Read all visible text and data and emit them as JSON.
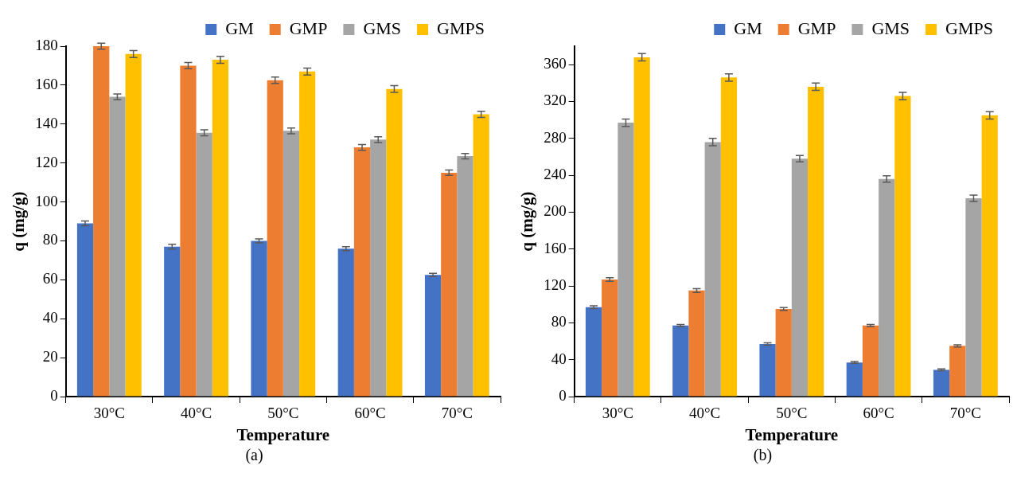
{
  "chart_data": [
    {
      "type": "bar",
      "xlabel": "Temperature",
      "ylabel": "q (mg/g)",
      "categories": [
        "30°C",
        "40°C",
        "50°C",
        "60°C",
        "70°C"
      ],
      "ylim": [
        0,
        180
      ],
      "yticks": [
        0,
        20,
        40,
        60,
        80,
        100,
        120,
        140,
        160,
        180
      ],
      "grid": false,
      "legend": "top right",
      "annotations": [
        "(a)"
      ],
      "series": [
        {
          "name": "GM",
          "color": "#4472c4",
          "values": [
            89,
            77,
            80,
            76,
            62.5
          ],
          "errors": [
            1.2,
            1.2,
            1,
            1,
            0.8
          ]
        },
        {
          "name": "GMP",
          "color": "#ed7d31",
          "values": [
            180,
            170,
            162.5,
            128,
            115
          ],
          "errors": [
            1.5,
            1.6,
            1.6,
            1.5,
            1.4
          ]
        },
        {
          "name": "GMS",
          "color": "#a5a5a5",
          "values": [
            154,
            135.5,
            136.5,
            132,
            123.5
          ],
          "errors": [
            1.5,
            1.5,
            1.5,
            1.5,
            1.4
          ]
        },
        {
          "name": "GMPS",
          "color": "#ffc000",
          "values": [
            176,
            173,
            167,
            158,
            145
          ],
          "errors": [
            1.8,
            1.8,
            1.8,
            1.7,
            1.6
          ]
        }
      ]
    },
    {
      "type": "bar",
      "xlabel": "Temperature",
      "ylabel": "q (mg/g)",
      "categories": [
        "30°C",
        "40°C",
        "50°C",
        "60°C",
        "70°C"
      ],
      "ylim": [
        0,
        380
      ],
      "yticks": [
        0,
        40,
        80,
        120,
        160,
        200,
        240,
        280,
        320,
        360
      ],
      "grid": false,
      "legend": "top right",
      "annotations": [
        "(b)"
      ],
      "series": [
        {
          "name": "GM",
          "color": "#4472c4",
          "values": [
            97,
            77,
            57,
            37,
            29
          ],
          "errors": [
            1.5,
            1.2,
            1.2,
            1,
            1
          ]
        },
        {
          "name": "GMP",
          "color": "#ed7d31",
          "values": [
            127,
            115,
            95,
            77,
            55
          ],
          "errors": [
            2,
            2,
            1.5,
            1.2,
            1.2
          ]
        },
        {
          "name": "GMS",
          "color": "#a5a5a5",
          "values": [
            297,
            276,
            258,
            236,
            215
          ],
          "errors": [
            4,
            4,
            3.5,
            3.5,
            3.5
          ]
        },
        {
          "name": "GMPS",
          "color": "#ffc000",
          "values": [
            368,
            346,
            336,
            326,
            305
          ],
          "errors": [
            4,
            4,
            4,
            4,
            4
          ]
        }
      ]
    }
  ]
}
